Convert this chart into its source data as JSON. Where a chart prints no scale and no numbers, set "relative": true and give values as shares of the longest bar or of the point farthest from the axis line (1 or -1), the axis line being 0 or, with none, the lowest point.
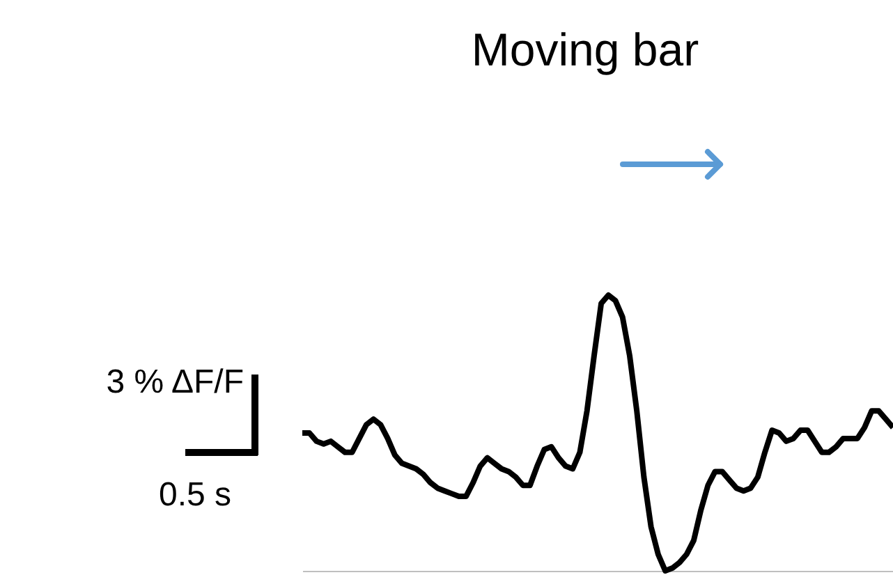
{
  "chart_data": {
    "type": "line",
    "title": "Moving bar",
    "relative": true,
    "color": "#000000",
    "line_style": "solid",
    "marker": "none",
    "grid": false,
    "annotations": [
      "3 % ΔF/F",
      "0.5 s"
    ],
    "categories": [
      null,
      null,
      null,
      null,
      null,
      null,
      null,
      null,
      null,
      null,
      null,
      null,
      null,
      null,
      null,
      null,
      null,
      null,
      null,
      null,
      null,
      null,
      null,
      null,
      null,
      null,
      null,
      null,
      null,
      null,
      null,
      null,
      null,
      null,
      null,
      null,
      null,
      null,
      null,
      null,
      null,
      null,
      null,
      null,
      null,
      null,
      null,
      null,
      null,
      null,
      null,
      null,
      null,
      null,
      null,
      null,
      null,
      null,
      null,
      null,
      null,
      null,
      null,
      null,
      null,
      null,
      null,
      null,
      null,
      null,
      null,
      null,
      null,
      null,
      null,
      null,
      null,
      null,
      null,
      null,
      null,
      null,
      null,
      null
    ],
    "values": [
      0.5,
      0.5,
      0.47,
      0.46,
      0.47,
      0.45,
      0.43,
      0.43,
      0.48,
      0.53,
      0.55,
      0.53,
      0.48,
      0.42,
      0.39,
      0.38,
      0.37,
      0.35,
      0.32,
      0.3,
      0.29,
      0.28,
      0.27,
      0.27,
      0.32,
      0.38,
      0.41,
      0.39,
      0.37,
      0.36,
      0.34,
      0.31,
      0.31,
      0.38,
      0.44,
      0.45,
      0.41,
      0.38,
      0.37,
      0.43,
      0.58,
      0.78,
      0.97,
      1.0,
      0.98,
      0.92,
      0.78,
      0.58,
      0.34,
      0.16,
      0.06,
      0.0,
      0.01,
      0.03,
      0.06,
      0.11,
      0.22,
      0.31,
      0.36,
      0.36,
      0.33,
      0.3,
      0.29,
      0.3,
      0.34,
      0.43,
      0.51,
      0.5,
      0.47,
      0.48,
      0.51,
      0.51,
      0.47,
      0.43,
      0.43,
      0.45,
      0.48,
      0.48,
      0.48,
      0.52,
      0.58,
      0.58,
      0.55,
      0.52
    ]
  }
}
